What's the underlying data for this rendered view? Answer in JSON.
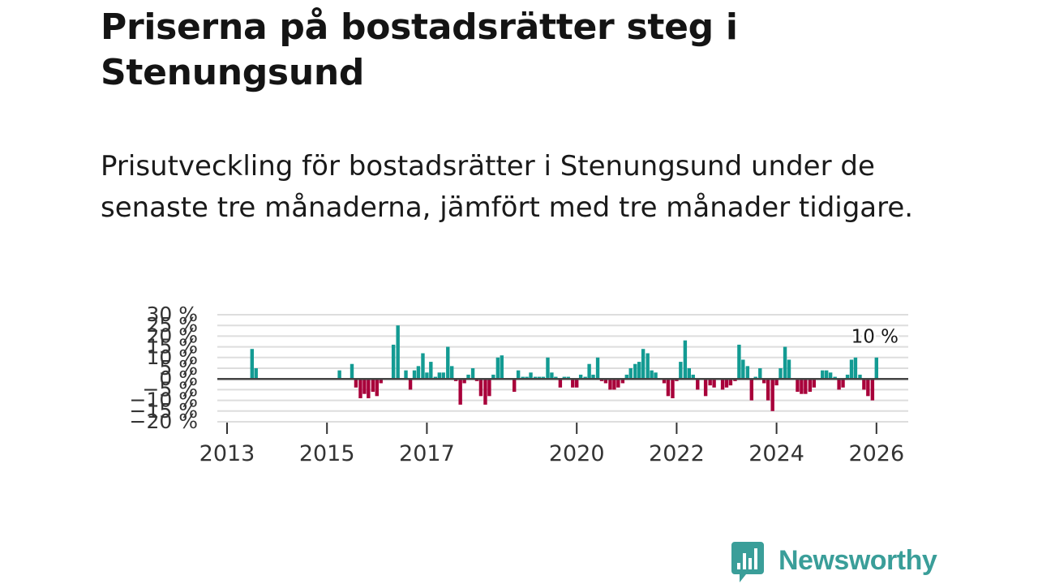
{
  "title": "Priserna på bostadsrätter steg i Stenungsund",
  "subtitle": "Prisutveckling för bostadsrätter i Stenungsund under de senaste tre månaderna, jämfört med tre månader tidigare.",
  "brand": {
    "name": "Newsworthy",
    "color": "#3a9e99"
  },
  "colors": {
    "positive": "#139b93",
    "negative": "#a8003a",
    "zero_line": "#444444",
    "grid": "#dddddd"
  },
  "chart_data": {
    "type": "bar",
    "ylim": [
      -20,
      30
    ],
    "y_ticks": [
      -20,
      -15,
      -10,
      -5,
      0,
      5,
      10,
      15,
      20,
      25,
      30
    ],
    "y_tick_labels": [
      "−20 %",
      "−15 %",
      "−10 %",
      "−5 %",
      "0 %",
      "5 %",
      "10 %",
      "15 %",
      "20 %",
      "25 %",
      "30 %"
    ],
    "x_ticks": [
      {
        "label": "2013",
        "at": 2013.0
      },
      {
        "label": "2015",
        "at": 2015.0
      },
      {
        "label": "2017",
        "at": 2017.0
      },
      {
        "label": "2020",
        "at": 2020.0
      },
      {
        "label": "2022",
        "at": 2022.0
      },
      {
        "label": "2024",
        "at": 2024.0
      },
      {
        "label": "2026",
        "at": 2026.0
      }
    ],
    "last_value_label": "10 %",
    "series": [
      {
        "name": "Prisutveckling",
        "points": [
          [
            2013.5,
            14
          ],
          [
            2013.58,
            5
          ],
          [
            2015.25,
            4
          ],
          [
            2015.5,
            7
          ],
          [
            2015.58,
            -4
          ],
          [
            2015.67,
            -9
          ],
          [
            2015.75,
            -7
          ],
          [
            2015.83,
            -9
          ],
          [
            2015.92,
            -6
          ],
          [
            2016.0,
            -8
          ],
          [
            2016.08,
            -2
          ],
          [
            2016.33,
            16
          ],
          [
            2016.42,
            25
          ],
          [
            2016.58,
            4
          ],
          [
            2016.67,
            -5
          ],
          [
            2016.75,
            4
          ],
          [
            2016.83,
            6
          ],
          [
            2016.92,
            12
          ],
          [
            2017.0,
            3
          ],
          [
            2017.08,
            8
          ],
          [
            2017.17,
            1
          ],
          [
            2017.25,
            3
          ],
          [
            2017.33,
            3
          ],
          [
            2017.42,
            15
          ],
          [
            2017.5,
            6
          ],
          [
            2017.58,
            -1
          ],
          [
            2017.67,
            -12
          ],
          [
            2017.75,
            -2
          ],
          [
            2017.83,
            2
          ],
          [
            2017.92,
            5
          ],
          [
            2018.0,
            -1
          ],
          [
            2018.08,
            -8
          ],
          [
            2018.17,
            -12
          ],
          [
            2018.25,
            -8
          ],
          [
            2018.33,
            2
          ],
          [
            2018.42,
            10
          ],
          [
            2018.5,
            11
          ],
          [
            2018.67,
            0
          ],
          [
            2018.75,
            -6
          ],
          [
            2018.83,
            4
          ],
          [
            2018.92,
            1
          ],
          [
            2019.0,
            1
          ],
          [
            2019.08,
            3
          ],
          [
            2019.17,
            1
          ],
          [
            2019.25,
            1
          ],
          [
            2019.33,
            1
          ],
          [
            2019.42,
            10
          ],
          [
            2019.5,
            3
          ],
          [
            2019.58,
            1
          ],
          [
            2019.67,
            -4
          ],
          [
            2019.75,
            1
          ],
          [
            2019.83,
            1
          ],
          [
            2019.92,
            -4
          ],
          [
            2020.0,
            -4
          ],
          [
            2020.08,
            2
          ],
          [
            2020.17,
            1
          ],
          [
            2020.25,
            7
          ],
          [
            2020.33,
            2
          ],
          [
            2020.42,
            10
          ],
          [
            2020.5,
            -1
          ],
          [
            2020.58,
            -2
          ],
          [
            2020.67,
            -5
          ],
          [
            2020.75,
            -5
          ],
          [
            2020.83,
            -4
          ],
          [
            2020.92,
            -2
          ],
          [
            2021.0,
            2
          ],
          [
            2021.08,
            5
          ],
          [
            2021.17,
            7
          ],
          [
            2021.25,
            8
          ],
          [
            2021.33,
            14
          ],
          [
            2021.42,
            12
          ],
          [
            2021.5,
            4
          ],
          [
            2021.58,
            3
          ],
          [
            2021.67,
            0
          ],
          [
            2021.75,
            -2
          ],
          [
            2021.83,
            -8
          ],
          [
            2021.92,
            -9
          ],
          [
            2022.0,
            -1
          ],
          [
            2022.08,
            8
          ],
          [
            2022.17,
            18
          ],
          [
            2022.25,
            5
          ],
          [
            2022.33,
            2
          ],
          [
            2022.42,
            -5
          ],
          [
            2022.5,
            0
          ],
          [
            2022.58,
            -8
          ],
          [
            2022.67,
            -3
          ],
          [
            2022.75,
            -4
          ],
          [
            2022.83,
            0
          ],
          [
            2022.92,
            -5
          ],
          [
            2023.0,
            -4
          ],
          [
            2023.08,
            -3
          ],
          [
            2023.17,
            -1
          ],
          [
            2023.25,
            16
          ],
          [
            2023.33,
            9
          ],
          [
            2023.42,
            6
          ],
          [
            2023.5,
            -10
          ],
          [
            2023.58,
            1
          ],
          [
            2023.67,
            5
          ],
          [
            2023.75,
            -2
          ],
          [
            2023.83,
            -10
          ],
          [
            2023.92,
            -15
          ],
          [
            2024.0,
            -3
          ],
          [
            2024.08,
            5
          ],
          [
            2024.17,
            15
          ],
          [
            2024.25,
            9
          ],
          [
            2024.33,
            0
          ],
          [
            2024.42,
            -6
          ],
          [
            2024.5,
            -7
          ],
          [
            2024.58,
            -7
          ],
          [
            2024.67,
            -6
          ],
          [
            2024.75,
            -4
          ],
          [
            2024.92,
            4
          ],
          [
            2025.0,
            4
          ],
          [
            2025.08,
            3
          ],
          [
            2025.17,
            1
          ],
          [
            2025.25,
            -5
          ],
          [
            2025.33,
            -4
          ],
          [
            2025.42,
            2
          ],
          [
            2025.5,
            9
          ],
          [
            2025.58,
            10
          ],
          [
            2025.67,
            2
          ],
          [
            2025.75,
            -5
          ],
          [
            2025.83,
            -8
          ],
          [
            2025.92,
            -10
          ],
          [
            2026.0,
            10
          ]
        ]
      }
    ]
  }
}
